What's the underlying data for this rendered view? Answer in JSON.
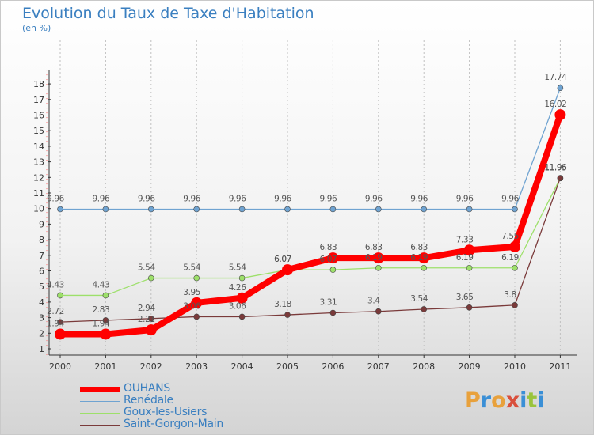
{
  "title": "Evolution du Taux de Taxe d'Habitation",
  "subtitle": "(en %)",
  "logo": "Proxiti",
  "colors": {
    "ouhans": "#ff0000",
    "renedale": "#6fa3d1",
    "goux": "#9de06a",
    "saint_gorgon": "#7a3a3a",
    "axis": "#333333",
    "label": "#3a7fc0",
    "grid": "#c0c0c0"
  },
  "chart_data": {
    "type": "line",
    "title": "Evolution du Taux de Taxe d'Habitation",
    "ylabel": "(en %)",
    "x": [
      "2000",
      "2001",
      "2002",
      "2003",
      "2004",
      "2005",
      "2006",
      "2007",
      "2008",
      "2009",
      "2010",
      "2011"
    ],
    "ylim": [
      1,
      18
    ],
    "yticks": [
      "1",
      "2",
      "3",
      "4",
      "5",
      "6",
      "7",
      "8",
      "9",
      "10",
      "11",
      "12",
      "13",
      "14",
      "15",
      "16",
      "17",
      "18"
    ],
    "grid": "vertical dashed",
    "legend_position": "bottom-left",
    "series": [
      {
        "name": "OUHANS",
        "color": "#ff0000",
        "values": [
          1.94,
          1.94,
          2.21,
          3.95,
          4.26,
          6.07,
          6.83,
          6.83,
          6.83,
          7.33,
          7.55,
          16.02
        ],
        "labels": [
          "1.94",
          "1.94",
          "2.21",
          "3.95",
          "4.26",
          "6.07",
          "6.83",
          "6.83",
          "6.83",
          "7.33",
          "7.55",
          "16.02"
        ]
      },
      {
        "name": "Renédale",
        "color": "#6fa3d1",
        "values": [
          9.96,
          9.96,
          9.96,
          9.96,
          9.96,
          9.96,
          9.96,
          9.96,
          9.96,
          9.96,
          9.96,
          17.74
        ],
        "labels": [
          "9.96",
          "9.96",
          "9.96",
          "9.96",
          "9.96",
          "9.96",
          "9.96",
          "9.96",
          "9.96",
          "9.96",
          "9.96",
          "17.74"
        ]
      },
      {
        "name": "Goux-les-Usiers",
        "color": "#9de06a",
        "values": [
          4.43,
          4.43,
          5.54,
          5.54,
          5.54,
          6.07,
          6.07,
          6.19,
          6.19,
          6.19,
          6.19,
          11.95
        ],
        "labels": [
          "4.43",
          "4.43",
          "5.54",
          "5.54",
          "5.54",
          "6.07",
          "6.07",
          "6.19",
          "6.19",
          "6.19",
          "6.19",
          "11.95"
        ]
      },
      {
        "name": "Saint-Gorgon-Main",
        "color": "#7a3a3a",
        "values": [
          2.72,
          2.83,
          2.94,
          3.06,
          3.06,
          3.18,
          3.31,
          3.4,
          3.54,
          3.65,
          3.8,
          11.96
        ],
        "labels": [
          "2.72",
          "2.83",
          "2.94",
          "3.06",
          "3.06",
          "3.18",
          "3.31",
          "3.4",
          "3.54",
          "3.65",
          "3.8",
          "11.96"
        ]
      }
    ]
  }
}
